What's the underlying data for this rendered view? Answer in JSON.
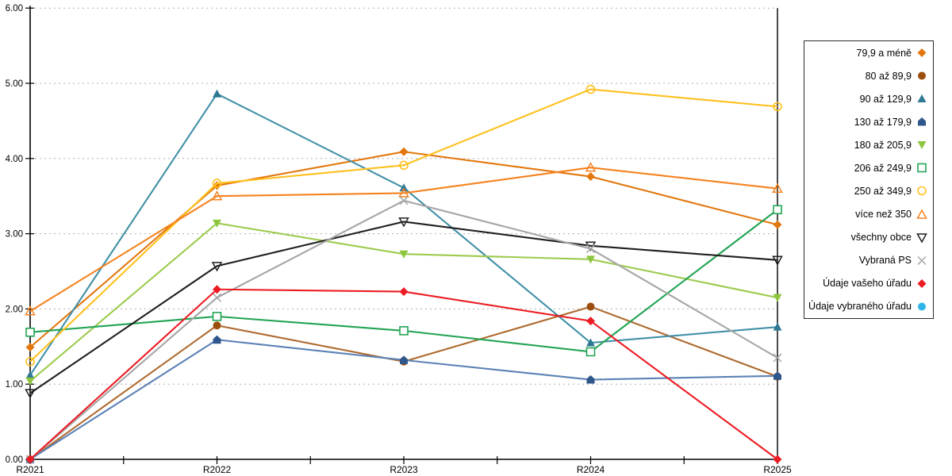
{
  "chart_data": {
    "type": "line",
    "title": "",
    "xlabel": "",
    "ylabel": "",
    "x_categories": [
      "R2021",
      "R2022",
      "R2023",
      "R2024",
      "R2025"
    ],
    "y_tick_labels": [
      "0.00",
      "1.00",
      "2.00",
      "3.00",
      "4.00",
      "5.00",
      "6.00"
    ],
    "ylim": [
      0,
      6
    ],
    "grid": "horizontal-dashed",
    "legend_position": "right-outside-box",
    "series": [
      {
        "name": "79,9 a méně",
        "marker": "diamond-filled",
        "color": "#E2770E",
        "values": [
          1.49,
          3.64,
          4.09,
          3.76,
          3.12
        ]
      },
      {
        "name": "80 až 89,9",
        "marker": "circle-filled",
        "color": "#9C4E0E",
        "line_color": "#AE6A2F",
        "values": [
          0.0,
          1.78,
          1.3,
          2.03,
          1.1
        ]
      },
      {
        "name": "90 až 129,9",
        "marker": "triangle-up-filled",
        "color": "#2E7893",
        "line_color": "#4190A8",
        "values": [
          1.12,
          4.86,
          3.61,
          1.55,
          1.76
        ]
      },
      {
        "name": "130 až 179,9",
        "marker": "pentagon-filled",
        "color": "#2F578C",
        "line_color": "#5C82B5",
        "values": [
          0.0,
          1.59,
          1.32,
          1.06,
          1.11
        ]
      },
      {
        "name": "180 až 205,9",
        "marker": "triangle-down-filled",
        "color": "#8CC63E",
        "line_color": "#9CCB4E",
        "values": [
          1.04,
          3.14,
          2.73,
          2.66,
          2.15
        ]
      },
      {
        "name": "206 až 249,9",
        "marker": "square-open",
        "color": "#23A455",
        "values": [
          1.69,
          1.9,
          1.71,
          1.43,
          3.32
        ]
      },
      {
        "name": "250 až 349,9",
        "marker": "circle-open",
        "color": "#FFC01E",
        "values": [
          1.3,
          3.67,
          3.91,
          4.92,
          4.69
        ]
      },
      {
        "name": "více než 350",
        "marker": "triangle-up-open",
        "color": "#F5821F",
        "values": [
          1.97,
          3.5,
          3.54,
          3.88,
          3.6
        ]
      },
      {
        "name": "všechny obce",
        "marker": "triangle-down-open",
        "color": "#1F1F1F",
        "values": [
          0.88,
          2.57,
          3.16,
          2.84,
          2.65
        ]
      },
      {
        "name": "Vybraná PS",
        "marker": "x-cross",
        "color": "#A6A6A6",
        "values": [
          0.0,
          2.15,
          3.44,
          2.8,
          1.35
        ]
      },
      {
        "name": "Údaje vašeho úřadu",
        "marker": "diamond-filled",
        "color": "#EC1C24",
        "values": [
          0.0,
          2.26,
          2.23,
          1.84,
          0.0
        ]
      },
      {
        "name": "Údaje vybraného úřadu",
        "marker": "circle-filled",
        "color": "#2FB4E9",
        "values": []
      }
    ],
    "colors": {
      "axis": "#000000",
      "gridline": "#ADADAD",
      "background": "#FFFFFF"
    }
  }
}
